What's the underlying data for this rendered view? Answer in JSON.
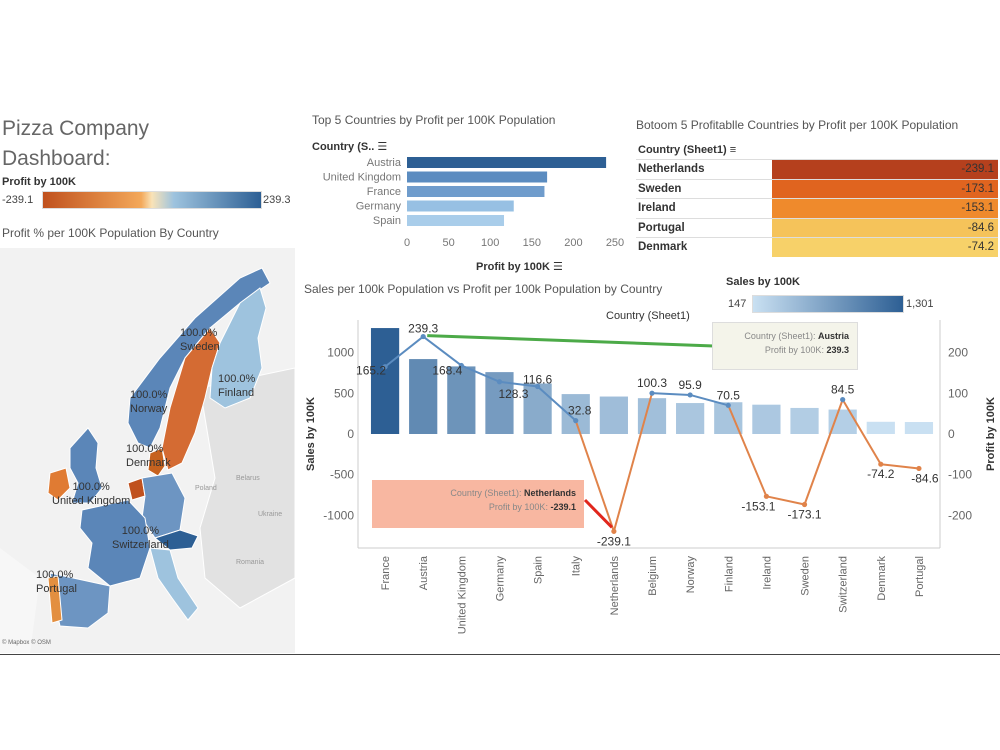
{
  "dashboard": {
    "title": "Pizza Company Dashboard:"
  },
  "legend_profit": {
    "label": "Profit by 100K",
    "min": "-239.1",
    "max": "239.3",
    "colors": [
      "#c0511e",
      "#f3a85a",
      "#f9e3b8",
      "#9ec3de",
      "#2d5f94"
    ]
  },
  "legend_sales": {
    "label": "Sales by 100K",
    "min": "147",
    "max": "1,301",
    "colors": [
      "#c9e0f2",
      "#2d5f94"
    ]
  },
  "map": {
    "title": "Profit % per 100K Population By Country",
    "attribution": "© Mapbox © OSM",
    "labels": [
      {
        "text": "100.0%",
        "sub": "Sweden"
      },
      {
        "text": "100.0%",
        "sub": "Finland"
      },
      {
        "text": "100.0%",
        "sub": "Norway"
      },
      {
        "text": "100.0%",
        "sub": "Denmark"
      },
      {
        "text": "100.0%",
        "sub": "United Kingdom"
      },
      {
        "text": "100.0%",
        "sub": "Switzerland"
      },
      {
        "text": "100.0%",
        "sub": "Portugal"
      }
    ],
    "basemap_labels": [
      "Poland",
      "Belarus",
      "Ukraine",
      "Romania"
    ]
  },
  "top5": {
    "title": "Top 5 Countries by Profit per 100K Population",
    "header": "Country (S..",
    "axis_title": "Profit by 100K",
    "ticks": [
      "0",
      "50",
      "100",
      "150",
      "200",
      "250"
    ]
  },
  "bottom5": {
    "title": "Botoom 5 Profitablle Countries by Profit per 100K Population",
    "header": "Country (Sheet1)",
    "colors": [
      "#b5401d",
      "#e0641f",
      "#ef8a2c",
      "#f5c35a",
      "#f7d169"
    ]
  },
  "combo": {
    "title": "Sales per 100k Population vs Profit per 100k Population by Country",
    "header": "Country (Sheet1)",
    "left_axis_title": "Sales by 100K",
    "right_axis_title": "Profit by 100K",
    "left_ticks": [
      "1000",
      "500",
      "0",
      "-500",
      "-1000"
    ],
    "right_ticks": [
      "200",
      "100",
      "0",
      "-100",
      "-200"
    ],
    "tooltip_top": {
      "key": "Country (Sheet1):",
      "country": "Austria",
      "pkey": "Profit by 100K:",
      "pval": "239.3"
    },
    "tooltip_bottom": {
      "key": "Country (Sheet1):",
      "country": "Netherlands",
      "pkey": "Profit by 100K:",
      "pval": "-239.1"
    }
  },
  "chart_data": [
    {
      "type": "bar",
      "orientation": "horizontal",
      "title": "Top 5 Countries by Profit per 100K Population",
      "categories": [
        "Austria",
        "United Kingdom",
        "France",
        "Germany",
        "Spain"
      ],
      "values": [
        239.3,
        168.4,
        165.2,
        128.3,
        116.6
      ],
      "xlabel": "Profit by 100K",
      "xlim": [
        0,
        250
      ]
    },
    {
      "type": "table",
      "title": "Botoom 5 Profitablle Countries by Profit per 100K Population",
      "categories": [
        "Netherlands",
        "Sweden",
        "Ireland",
        "Portugal",
        "Denmark"
      ],
      "values": [
        "-239.1",
        "-173.1",
        "-153.1",
        "-84.6",
        "-74.2"
      ]
    },
    {
      "type": "bar",
      "title": "Sales per 100k Population vs Profit per 100k Population by Country",
      "categories": [
        "France",
        "Austria",
        "United Kingdom",
        "Germany",
        "Spain",
        "Italy",
        "Netherlands",
        "Belgium",
        "Norway",
        "Finland",
        "Ireland",
        "Sweden",
        "Switzerland",
        "Denmark",
        "Portugal"
      ],
      "series": [
        {
          "name": "Sales by 100K",
          "type": "bar",
          "axis": "left",
          "values": [
            1301,
            920,
            830,
            760,
            620,
            490,
            460,
            440,
            380,
            390,
            360,
            320,
            300,
            150,
            147
          ]
        },
        {
          "name": "Profit by 100K",
          "type": "line",
          "axis": "right",
          "values": [
            165.2,
            239.3,
            168.4,
            128.3,
            116.6,
            32.8,
            -239.1,
            100.3,
            95.9,
            70.5,
            -153.1,
            -173.1,
            84.5,
            -74.2,
            -84.6
          ],
          "labels": [
            "165.2",
            "239.3",
            "168.4",
            "128.3",
            "116.6",
            "32.8",
            "-239.1",
            "100.3",
            "95.9",
            "70.5",
            "-153.1",
            "-173.1",
            "84.5",
            "-74.2",
            "-84.6"
          ]
        }
      ],
      "ylabel": "Sales by 100K",
      "y2label": "Profit by 100K",
      "ylim": [
        -1400,
        1400
      ],
      "y2lim": [
        -280,
        280
      ],
      "xlabel": "Country (Sheet1)"
    }
  ]
}
